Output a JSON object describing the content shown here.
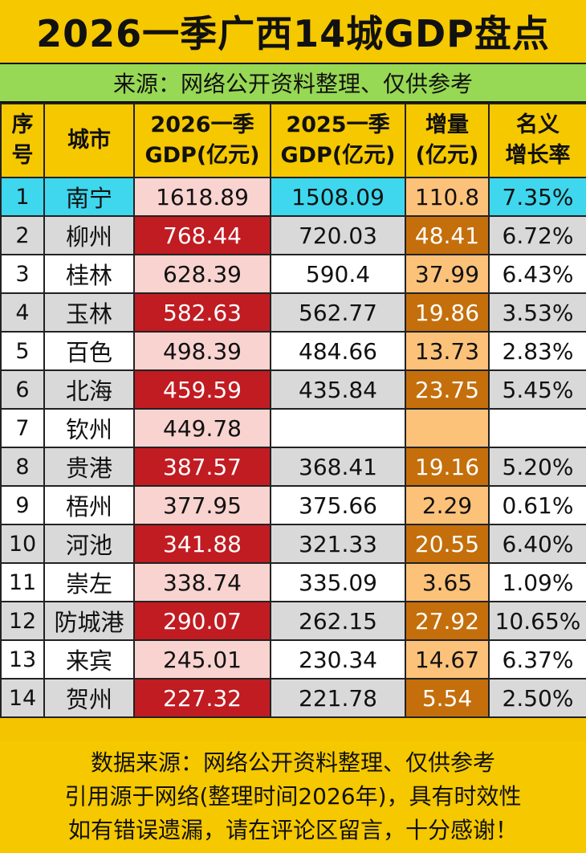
{
  "title": "2026一季广西14城GDP盘点",
  "subtitle": "来源：网络公开资料整理、仅供参考",
  "headers": {
    "idx": [
      "序",
      "号"
    ],
    "city": "城市",
    "gdp2026": [
      "2026一季",
      "GDP(亿元)"
    ],
    "gdp2025": [
      "2025一季",
      "GDP(亿元)"
    ],
    "increase": [
      "增量",
      "(亿元)"
    ],
    "growth": [
      "名义",
      "增长率"
    ]
  },
  "rows": [
    {
      "idx": "1",
      "city": "南宁",
      "gdp2026": "1618.89",
      "gdp2025": "1508.09",
      "increase": "110.8",
      "growth": "7.35%"
    },
    {
      "idx": "2",
      "city": "柳州",
      "gdp2026": "768.44",
      "gdp2025": "720.03",
      "increase": "48.41",
      "growth": "6.72%"
    },
    {
      "idx": "3",
      "city": "桂林",
      "gdp2026": "628.39",
      "gdp2025": "590.4",
      "increase": "37.99",
      "growth": "6.43%"
    },
    {
      "idx": "4",
      "city": "玉林",
      "gdp2026": "582.63",
      "gdp2025": "562.77",
      "increase": "19.86",
      "growth": "3.53%"
    },
    {
      "idx": "5",
      "city": "百色",
      "gdp2026": "498.39",
      "gdp2025": "484.66",
      "increase": "13.73",
      "growth": "2.83%"
    },
    {
      "idx": "6",
      "city": "北海",
      "gdp2026": "459.59",
      "gdp2025": "435.84",
      "increase": "23.75",
      "growth": "5.45%"
    },
    {
      "idx": "7",
      "city": "钦州",
      "gdp2026": "449.78",
      "gdp2025": "",
      "increase": "",
      "growth": ""
    },
    {
      "idx": "8",
      "city": "贵港",
      "gdp2026": "387.57",
      "gdp2025": "368.41",
      "increase": "19.16",
      "growth": "5.20%"
    },
    {
      "idx": "9",
      "city": "梧州",
      "gdp2026": "377.95",
      "gdp2025": "375.66",
      "increase": "2.29",
      "growth": "0.61%"
    },
    {
      "idx": "10",
      "city": "河池",
      "gdp2026": "341.88",
      "gdp2025": "321.33",
      "increase": "20.55",
      "growth": "6.40%"
    },
    {
      "idx": "11",
      "city": "崇左",
      "gdp2026": "338.74",
      "gdp2025": "335.09",
      "increase": "3.65",
      "growth": "1.09%"
    },
    {
      "idx": "12",
      "city": "防城港",
      "gdp2026": "290.07",
      "gdp2025": "262.15",
      "increase": "27.92",
      "growth": "10.65%"
    },
    {
      "idx": "13",
      "city": "来宾",
      "gdp2026": "245.01",
      "gdp2025": "230.34",
      "increase": "14.67",
      "growth": "6.37%"
    },
    {
      "idx": "14",
      "city": "贺州",
      "gdp2026": "227.32",
      "gdp2025": "221.78",
      "increase": "5.54",
      "growth": "2.50%"
    }
  ],
  "footer": [
    "数据来源：网络公开资料整理、仅供参考",
    "引用源于网络(整理时间2026年)，具有时效性",
    "如有错误遗漏，请在评论区留言，十分感谢！"
  ],
  "colors": {
    "header_bg": "#f5c800",
    "subtitle_bg": "#97d854",
    "first_row_bg": "#3ed7ee",
    "gdp2026_dark": "#c01c22",
    "gdp2026_light": "#f8d3d0",
    "increase_dark": "#c46f0c",
    "increase_light": "#fcc27a"
  }
}
